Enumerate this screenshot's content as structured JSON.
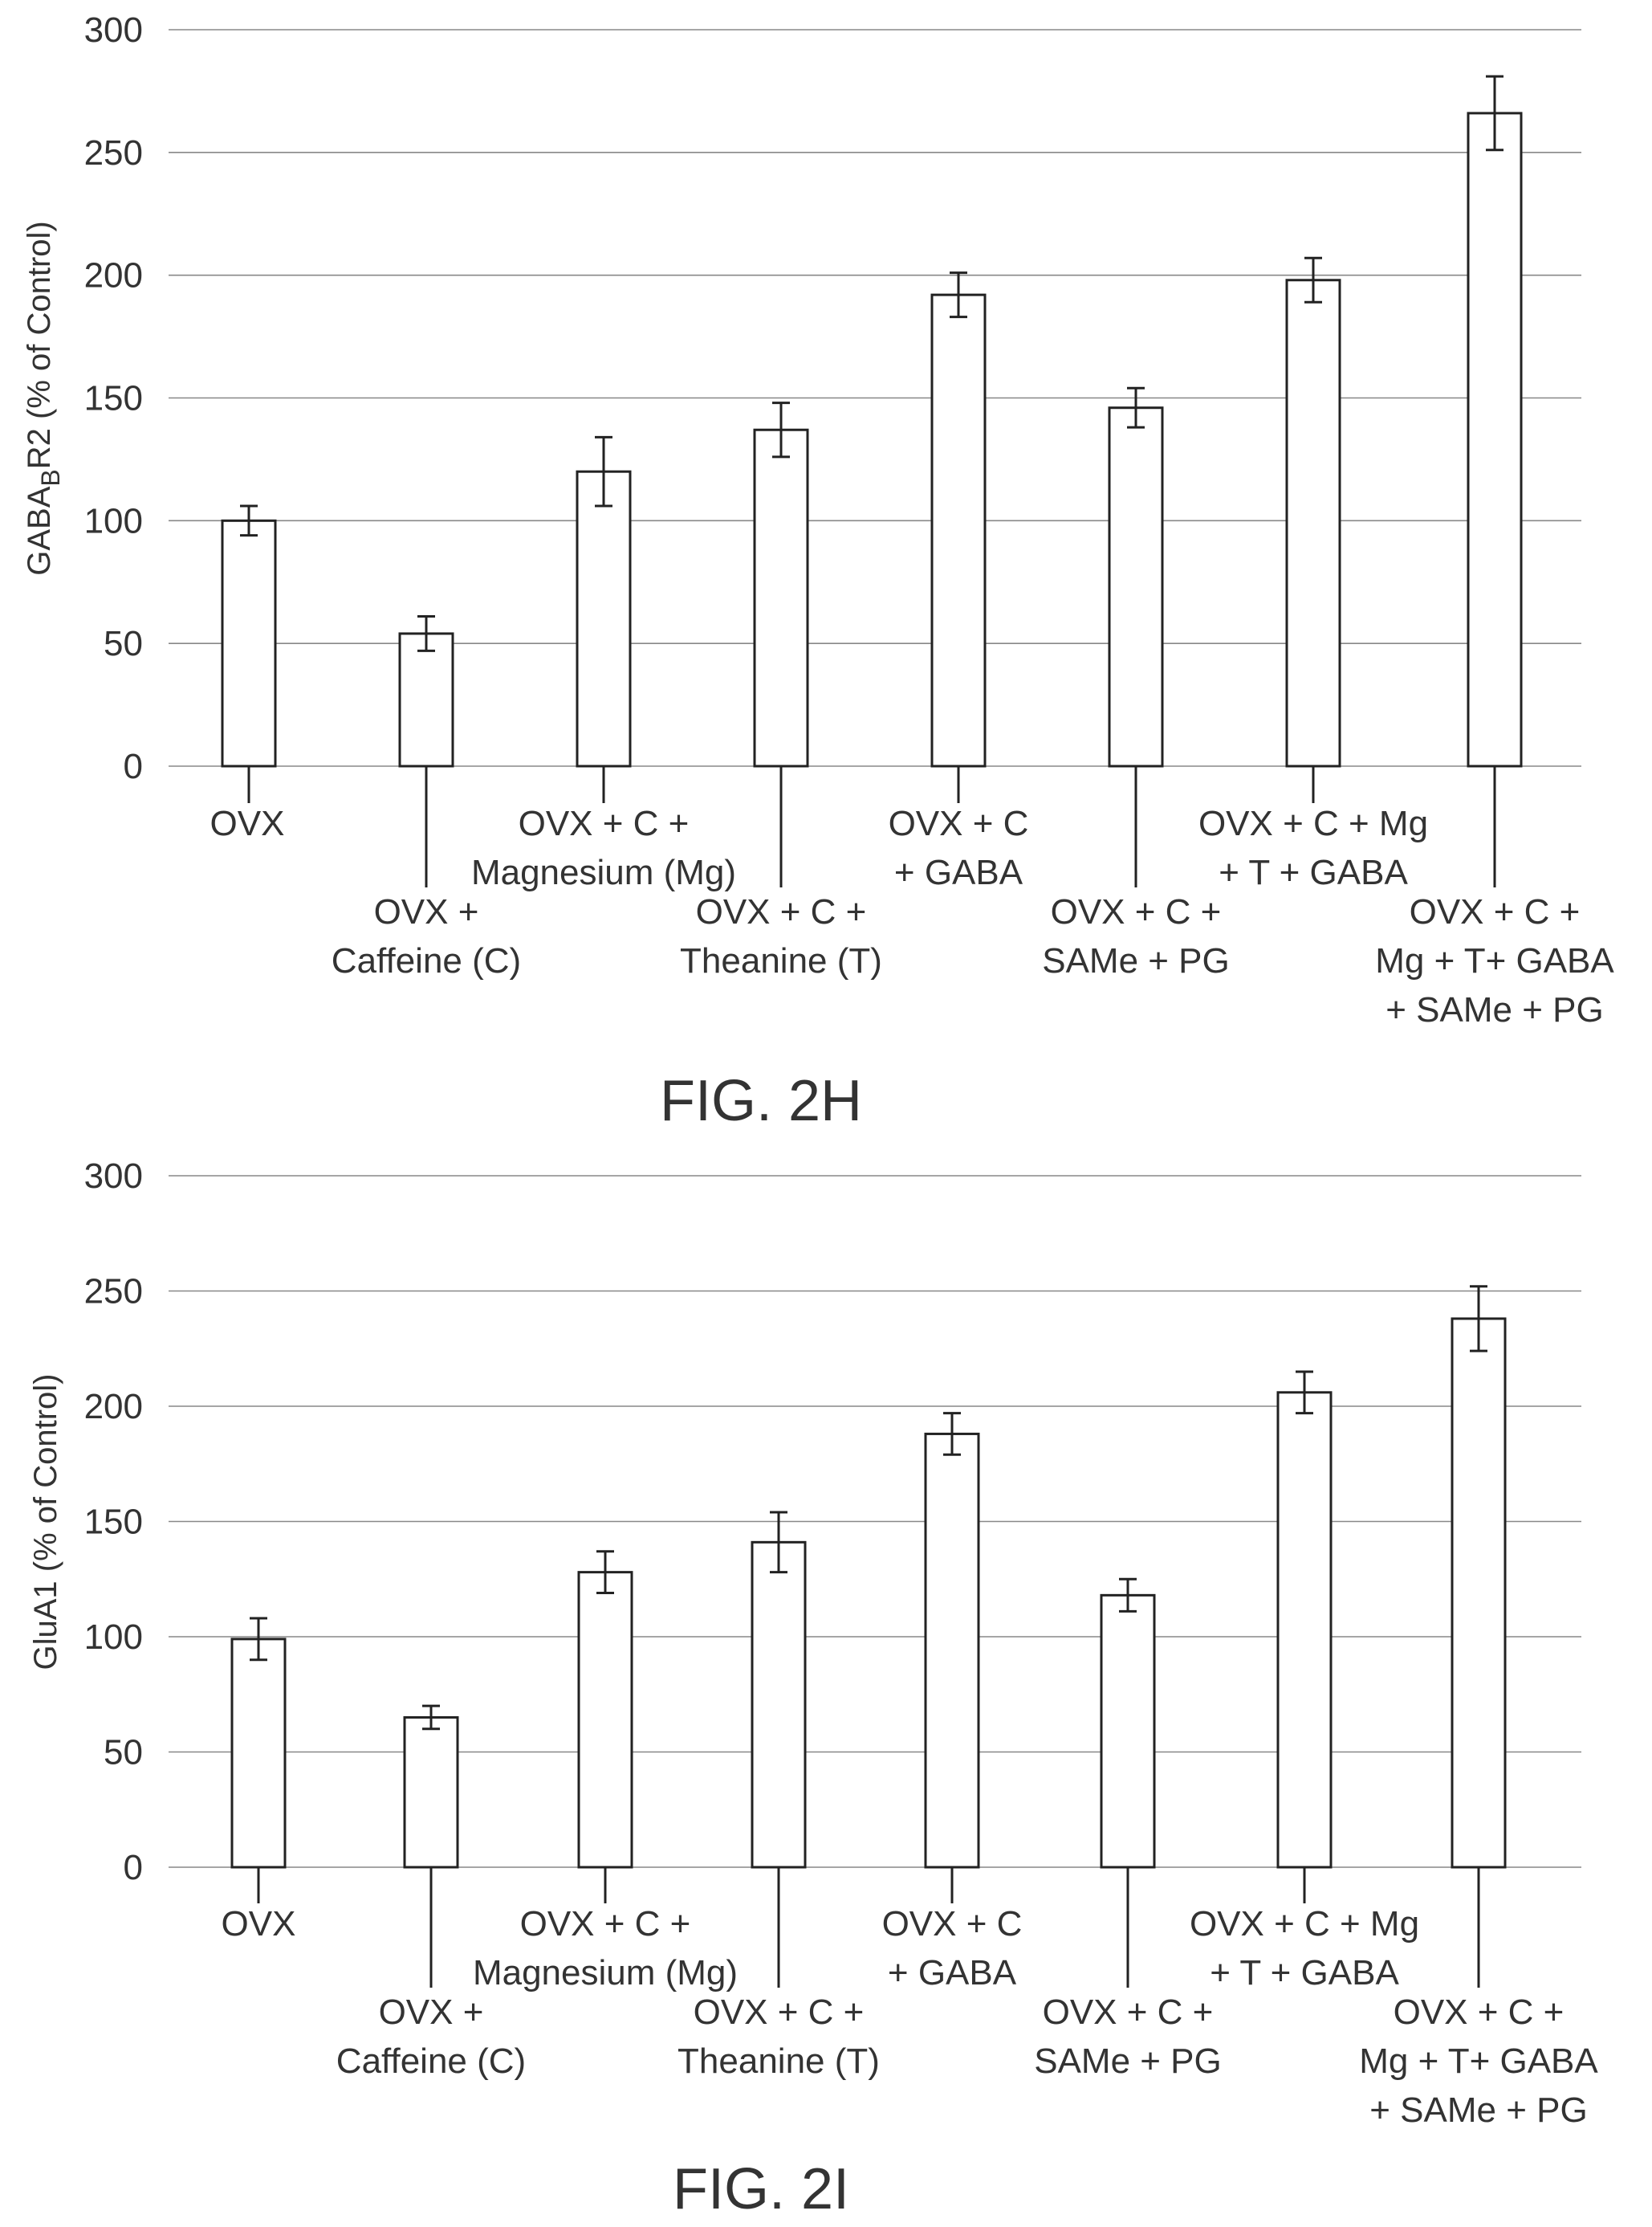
{
  "chart_data": [
    {
      "type": "bar",
      "figure_label": "FIG. 2H",
      "ylabel": "GABA",
      "ylabel_sub": "B",
      "ylabel_rest": "R2 (% of Control)",
      "ylim": [
        0,
        300
      ],
      "yticks": [
        "0",
        "50",
        "100",
        "150",
        "200",
        "250",
        "300"
      ],
      "grid": true,
      "categories": [
        [
          "OVX"
        ],
        [
          "OVX +",
          "Caffeine (C)"
        ],
        [
          "OVX + C +",
          "Magnesium (Mg)"
        ],
        [
          "OVX + C +",
          "Theanine (T)"
        ],
        [
          "OVX + C",
          "+ GABA"
        ],
        [
          "OVX + C +",
          "SAMe + PG"
        ],
        [
          "OVX + C + Mg",
          "+ T + GABA"
        ],
        [
          "OVX + C +",
          "Mg + T+ GABA",
          "+ SAMe + PG"
        ]
      ],
      "values": [
        100,
        54,
        120,
        137,
        192,
        146,
        198,
        266
      ],
      "errors": [
        6,
        7,
        14,
        11,
        9,
        8,
        9,
        15
      ]
    },
    {
      "type": "bar",
      "figure_label": "FIG. 2I",
      "ylabel": "GluA1 (% of Control)",
      "ylim": [
        0,
        300
      ],
      "yticks": [
        "0",
        "50",
        "100",
        "150",
        "200",
        "250",
        "300"
      ],
      "grid": true,
      "categories": [
        [
          "OVX"
        ],
        [
          "OVX +",
          "Caffeine (C)"
        ],
        [
          "OVX + C +",
          "Magnesium (Mg)"
        ],
        [
          "OVX + C +",
          "Theanine (T)"
        ],
        [
          "OVX + C",
          "+ GABA"
        ],
        [
          "OVX + C +",
          "SAMe + PG"
        ],
        [
          "OVX + C + Mg",
          "+ T + GABA"
        ],
        [
          "OVX + C +",
          "Mg + T+ GABA",
          "+ SAMe + PG"
        ]
      ],
      "values": [
        99,
        65,
        128,
        141,
        188,
        118,
        206,
        238
      ],
      "errors": [
        9,
        5,
        9,
        13,
        9,
        7,
        9,
        14
      ]
    }
  ]
}
